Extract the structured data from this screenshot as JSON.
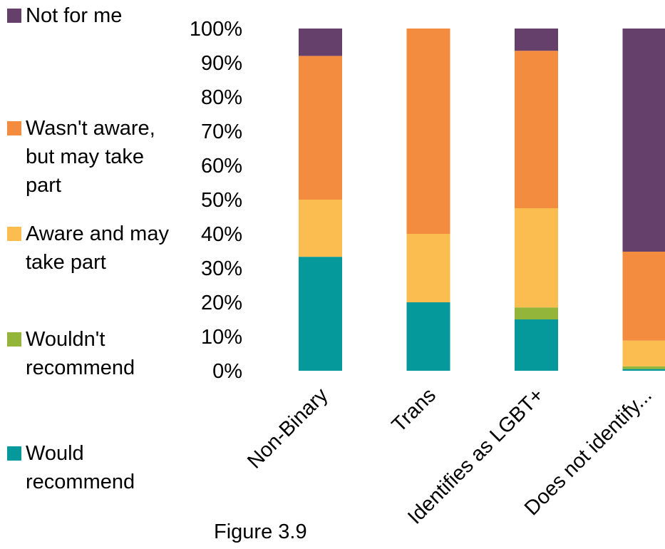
{
  "caption": "Figure 3.9",
  "chart_data": {
    "type": "bar",
    "stacked": true,
    "percent": true,
    "categories": [
      "Non-Binary",
      "Trans",
      "Identifies as LGBT+",
      "Does not identify..."
    ],
    "series": [
      {
        "name": "Would recommend",
        "color": "#06999c",
        "values": [
          33.3,
          20,
          15,
          0.5
        ]
      },
      {
        "name": "Wouldn't recommend",
        "color": "#93b63a",
        "values": [
          0,
          0,
          3.5,
          0.8
        ]
      },
      {
        "name": "Aware and may take part",
        "color": "#fbbd4f",
        "values": [
          16.7,
          20,
          29,
          7.5
        ]
      },
      {
        "name": "Wasn't aware, but may take part",
        "color": "#f38c3e",
        "values": [
          42,
          60,
          46,
          26
        ]
      },
      {
        "name": "Not for me",
        "color": "#65406a",
        "values": [
          8,
          0,
          6.5,
          65.2
        ]
      }
    ],
    "legend_order": [
      "Not for me",
      "Wasn't aware, but may take part",
      "Aware and may take part",
      "Wouldn't recommend",
      "Would recommend"
    ],
    "legend_position": "left",
    "yticks": [
      "0%",
      "10%",
      "20%",
      "30%",
      "40%",
      "50%",
      "60%",
      "70%",
      "80%",
      "90%",
      "100%"
    ],
    "ylim": [
      0,
      100
    ],
    "grid": false
  }
}
